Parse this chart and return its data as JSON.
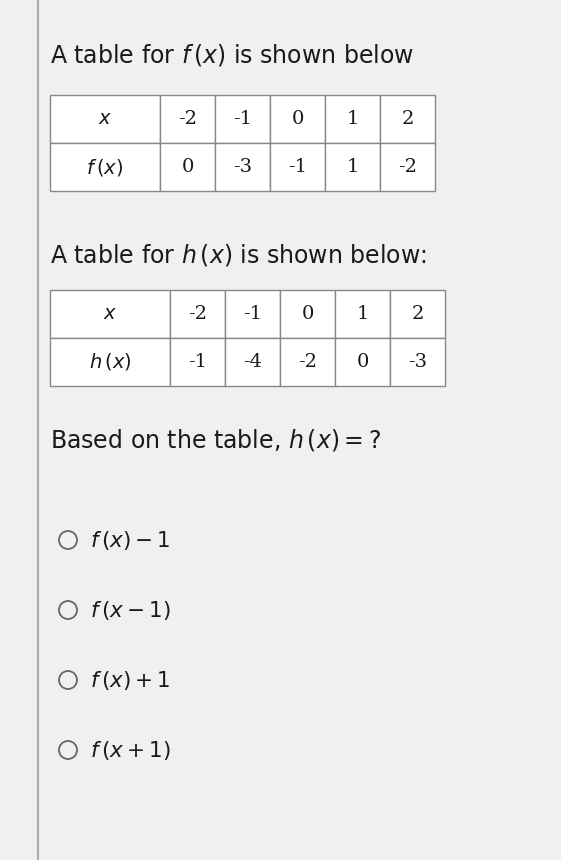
{
  "title1": "A table for $f\\,(x)$ is shown below",
  "title2": "A table for $h\\,(x)$ is shown below:",
  "question": "Based on the table, $h\\,(x) =?$",
  "fx_row1": [
    "$x$",
    "-2",
    "-1",
    "0",
    "1",
    "2"
  ],
  "fx_row2": [
    "$f\\,(x)$",
    "0",
    "-3",
    "-1",
    "1",
    "-2"
  ],
  "hx_row1": [
    "$x$",
    "-2",
    "-1",
    "0",
    "1",
    "2"
  ],
  "hx_row2": [
    "$h\\,(x)$",
    "-1",
    "-4",
    "-2",
    "0",
    "-3"
  ],
  "choices": [
    "$f\\,(x)-1$",
    "$f\\,(x-1)$",
    "$f\\,(x)+1$",
    "$f\\,(x+1)$"
  ],
  "bg_color": "#f0f0f0",
  "card_color": "#f7f7f7",
  "table_bg": "#ffffff",
  "text_color": "#1a1a1a",
  "border_color": "#888888",
  "left_bar_color": "#aaaaaa"
}
